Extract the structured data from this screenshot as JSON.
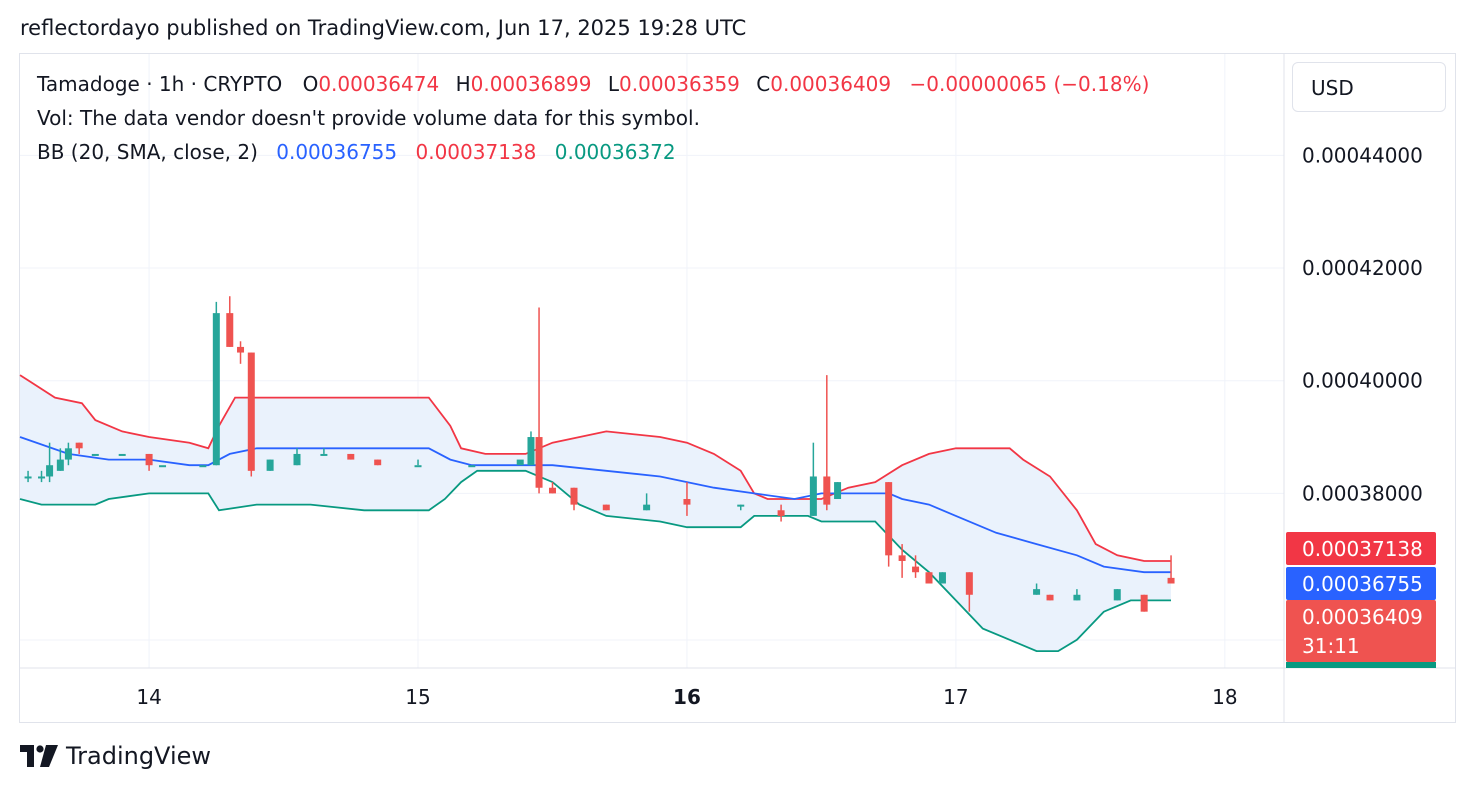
{
  "published": "reflectordayo published on TradingView.com, Jun 17, 2025 19:28 UTC",
  "symbol_line": {
    "symbol": "Tamadoge · 1h · CRYPTO",
    "o_label": "O",
    "o_value": "0.00036474",
    "h_label": "H",
    "h_value": "0.00036899",
    "l_label": "L",
    "l_value": "0.00036359",
    "c_label": "C",
    "c_value": "0.00036409",
    "change": "−0.00000065 (−0.18%)"
  },
  "volume_note": "Vol: The data vendor doesn't provide volume data for this symbol.",
  "bb_line": {
    "label": "BB (20, SMA, close, 2)",
    "basis": "0.00036755",
    "upper": "0.00037138",
    "lower": "0.00036372"
  },
  "currency": "USD",
  "footer_brand": "TradingView",
  "colors": {
    "up": "#26a69a",
    "down": "#ef5350",
    "basis": "#2962ff",
    "upper": "#f23645",
    "lower": "#089981",
    "band_fill": "#eaf2fc",
    "grid": "#f0f3fa"
  },
  "chart_data": {
    "type": "candlestick",
    "interval": "1h",
    "ylim": [
      0.000349,
      0.000458
    ],
    "xlim": [
      13.52,
      18.22
    ],
    "y_ticks": [
      "0.00044000",
      "0.00042000",
      "0.00040000",
      "0.00038000"
    ],
    "y_tick_values": [
      0.00044,
      0.00042,
      0.0004,
      0.00038
    ],
    "x_ticks": [
      "14",
      "15",
      "16",
      "17",
      "18"
    ],
    "x_tick_values": [
      14,
      15,
      16,
      17,
      18
    ],
    "x_tick_bold": [
      false,
      false,
      true,
      false,
      false
    ],
    "price_labels": [
      {
        "text": "0.00037138",
        "value": 0.00037138,
        "color": "#f23645"
      },
      {
        "text": "0.00036755",
        "value": 0.00036755,
        "color": "#2962ff"
      },
      {
        "text": "0.00036409",
        "sub": "31:11",
        "value": 0.00036409,
        "color": "#ef5350"
      }
    ],
    "series": [
      {
        "name": "BB Upper",
        "color": "#f23645",
        "points": [
          [
            13.52,
            0.000401
          ],
          [
            13.65,
            0.000397
          ],
          [
            13.75,
            0.000396
          ],
          [
            13.8,
            0.000393
          ],
          [
            13.9,
            0.000391
          ],
          [
            14.0,
            0.00039
          ],
          [
            14.15,
            0.000389
          ],
          [
            14.22,
            0.000388
          ],
          [
            14.26,
            0.000392
          ],
          [
            14.32,
            0.000397
          ],
          [
            14.5,
            0.000397
          ],
          [
            14.75,
            0.000397
          ],
          [
            15.04,
            0.000397
          ],
          [
            15.12,
            0.000392
          ],
          [
            15.16,
            0.000388
          ],
          [
            15.25,
            0.000387
          ],
          [
            15.4,
            0.000387
          ],
          [
            15.5,
            0.000389
          ],
          [
            15.7,
            0.000391
          ],
          [
            15.9,
            0.00039
          ],
          [
            16.0,
            0.000389
          ],
          [
            16.1,
            0.000387
          ],
          [
            16.2,
            0.000384
          ],
          [
            16.25,
            0.00038
          ],
          [
            16.3,
            0.000379
          ],
          [
            16.42,
            0.000379
          ],
          [
            16.5,
            0.000379
          ],
          [
            16.6,
            0.000381
          ],
          [
            16.7,
            0.000382
          ],
          [
            16.8,
            0.000385
          ],
          [
            16.9,
            0.000387
          ],
          [
            17.0,
            0.000388
          ],
          [
            17.1,
            0.000388
          ],
          [
            17.2,
            0.000388
          ],
          [
            17.25,
            0.000386
          ],
          [
            17.35,
            0.000383
          ],
          [
            17.45,
            0.000377
          ],
          [
            17.52,
            0.000371
          ],
          [
            17.6,
            0.000369
          ],
          [
            17.7,
            0.000368
          ],
          [
            17.8,
            0.000368
          ]
        ]
      },
      {
        "name": "BB Basis",
        "color": "#2962ff",
        "points": [
          [
            13.52,
            0.00039
          ],
          [
            13.7,
            0.000387
          ],
          [
            13.85,
            0.000386
          ],
          [
            14.0,
            0.000386
          ],
          [
            14.15,
            0.000385
          ],
          [
            14.22,
            0.000385
          ],
          [
            14.3,
            0.000387
          ],
          [
            14.4,
            0.000388
          ],
          [
            14.6,
            0.000388
          ],
          [
            14.8,
            0.000388
          ],
          [
            15.04,
            0.000388
          ],
          [
            15.12,
            0.000386
          ],
          [
            15.2,
            0.000385
          ],
          [
            15.4,
            0.000385
          ],
          [
            15.5,
            0.000385
          ],
          [
            15.7,
            0.000384
          ],
          [
            15.9,
            0.000383
          ],
          [
            16.1,
            0.000381
          ],
          [
            16.25,
            0.00038
          ],
          [
            16.4,
            0.000379
          ],
          [
            16.5,
            0.00038
          ],
          [
            16.6,
            0.00038
          ],
          [
            16.75,
            0.00038
          ],
          [
            16.8,
            0.000379
          ],
          [
            16.9,
            0.000378
          ],
          [
            17.0,
            0.000376
          ],
          [
            17.15,
            0.000373
          ],
          [
            17.3,
            0.000371
          ],
          [
            17.45,
            0.000369
          ],
          [
            17.55,
            0.000367
          ],
          [
            17.7,
            0.000366
          ],
          [
            17.8,
            0.000366
          ]
        ]
      },
      {
        "name": "BB Lower",
        "color": "#089981",
        "points": [
          [
            13.52,
            0.000379
          ],
          [
            13.6,
            0.000378
          ],
          [
            13.8,
            0.000378
          ],
          [
            13.85,
            0.000379
          ],
          [
            14.0,
            0.00038
          ],
          [
            14.22,
            0.00038
          ],
          [
            14.26,
            0.000377
          ],
          [
            14.4,
            0.000378
          ],
          [
            14.6,
            0.000378
          ],
          [
            14.8,
            0.000377
          ],
          [
            15.04,
            0.000377
          ],
          [
            15.1,
            0.000379
          ],
          [
            15.16,
            0.000382
          ],
          [
            15.22,
            0.000384
          ],
          [
            15.4,
            0.000384
          ],
          [
            15.5,
            0.000382
          ],
          [
            15.6,
            0.000378
          ],
          [
            15.7,
            0.000376
          ],
          [
            15.9,
            0.000375
          ],
          [
            16.0,
            0.000374
          ],
          [
            16.1,
            0.000374
          ],
          [
            16.2,
            0.000374
          ],
          [
            16.25,
            0.000376
          ],
          [
            16.45,
            0.000376
          ],
          [
            16.5,
            0.000375
          ],
          [
            16.7,
            0.000375
          ],
          [
            16.8,
            0.00037
          ],
          [
            16.9,
            0.000366
          ],
          [
            17.0,
            0.000361
          ],
          [
            17.1,
            0.000356
          ],
          [
            17.2,
            0.000354
          ],
          [
            17.3,
            0.000352
          ],
          [
            17.38,
            0.000352
          ],
          [
            17.45,
            0.000354
          ],
          [
            17.55,
            0.000359
          ],
          [
            17.65,
            0.000361
          ],
          [
            17.75,
            0.000361
          ],
          [
            17.8,
            0.000361
          ]
        ]
      }
    ],
    "candles": [
      {
        "x": 13.55,
        "o": 0.000383,
        "h": 0.000384,
        "l": 0.000382,
        "c": 0.000383
      },
      {
        "x": 13.6,
        "o": 0.000383,
        "h": 0.000384,
        "l": 0.000382,
        "c": 0.000383
      },
      {
        "x": 13.63,
        "o": 0.000383,
        "h": 0.000389,
        "l": 0.000382,
        "c": 0.000385
      },
      {
        "x": 13.67,
        "o": 0.000384,
        "h": 0.000388,
        "l": 0.000384,
        "c": 0.000386
      },
      {
        "x": 13.7,
        "o": 0.000386,
        "h": 0.000389,
        "l": 0.000385,
        "c": 0.000388
      },
      {
        "x": 13.74,
        "o": 0.000389,
        "h": 0.000389,
        "l": 0.000387,
        "c": 0.000388
      },
      {
        "x": 13.8,
        "o": 0.000387,
        "h": 0.000387,
        "l": 0.000387,
        "c": 0.000387
      },
      {
        "x": 13.9,
        "o": 0.000387,
        "h": 0.000387,
        "l": 0.000387,
        "c": 0.000387
      },
      {
        "x": 14.0,
        "o": 0.000387,
        "h": 0.000387,
        "l": 0.000384,
        "c": 0.000385
      },
      {
        "x": 14.05,
        "o": 0.000385,
        "h": 0.000385,
        "l": 0.000385,
        "c": 0.000385
      },
      {
        "x": 14.2,
        "o": 0.000385,
        "h": 0.000385,
        "l": 0.000385,
        "c": 0.000385
      },
      {
        "x": 14.25,
        "o": 0.000385,
        "h": 0.000414,
        "l": 0.000385,
        "c": 0.000412
      },
      {
        "x": 14.3,
        "o": 0.000412,
        "h": 0.000415,
        "l": 0.000406,
        "c": 0.000406
      },
      {
        "x": 14.34,
        "o": 0.000406,
        "h": 0.000407,
        "l": 0.000403,
        "c": 0.000405
      },
      {
        "x": 14.38,
        "o": 0.000405,
        "h": 0.000405,
        "l": 0.000383,
        "c": 0.000384
      },
      {
        "x": 14.45,
        "o": 0.000384,
        "h": 0.000386,
        "l": 0.000384,
        "c": 0.000386
      },
      {
        "x": 14.55,
        "o": 0.000385,
        "h": 0.000388,
        "l": 0.000385,
        "c": 0.000387
      },
      {
        "x": 14.65,
        "o": 0.000387,
        "h": 0.000388,
        "l": 0.000387,
        "c": 0.000387
      },
      {
        "x": 14.75,
        "o": 0.000387,
        "h": 0.000387,
        "l": 0.000386,
        "c": 0.000386
      },
      {
        "x": 14.85,
        "o": 0.000386,
        "h": 0.000386,
        "l": 0.000385,
        "c": 0.000385
      },
      {
        "x": 15.0,
        "o": 0.000385,
        "h": 0.000386,
        "l": 0.000385,
        "c": 0.000385
      },
      {
        "x": 15.2,
        "o": 0.000385,
        "h": 0.000385,
        "l": 0.000385,
        "c": 0.000385
      },
      {
        "x": 15.38,
        "o": 0.000385,
        "h": 0.000385,
        "l": 0.000385,
        "c": 0.000386
      },
      {
        "x": 15.42,
        "o": 0.000385,
        "h": 0.000391,
        "l": 0.000385,
        "c": 0.00039
      },
      {
        "x": 15.45,
        "o": 0.00039,
        "h": 0.000413,
        "l": 0.00038,
        "c": 0.000381
      },
      {
        "x": 15.5,
        "o": 0.000381,
        "h": 0.000382,
        "l": 0.00038,
        "c": 0.00038
      },
      {
        "x": 15.58,
        "o": 0.000381,
        "h": 0.000381,
        "l": 0.000377,
        "c": 0.000378
      },
      {
        "x": 15.7,
        "o": 0.000378,
        "h": 0.000378,
        "l": 0.000377,
        "c": 0.000377
      },
      {
        "x": 15.85,
        "o": 0.000377,
        "h": 0.00038,
        "l": 0.000377,
        "c": 0.000378
      },
      {
        "x": 16.0,
        "o": 0.000379,
        "h": 0.000382,
        "l": 0.000376,
        "c": 0.000378
      },
      {
        "x": 16.2,
        "o": 0.000378,
        "h": 0.000378,
        "l": 0.000377,
        "c": 0.000378
      },
      {
        "x": 16.35,
        "o": 0.000377,
        "h": 0.000378,
        "l": 0.000375,
        "c": 0.000376
      },
      {
        "x": 16.47,
        "o": 0.000376,
        "h": 0.000389,
        "l": 0.000376,
        "c": 0.000383
      },
      {
        "x": 16.52,
        "o": 0.000383,
        "h": 0.000401,
        "l": 0.000377,
        "c": 0.000378
      },
      {
        "x": 16.56,
        "o": 0.000379,
        "h": 0.000382,
        "l": 0.000379,
        "c": 0.000382
      },
      {
        "x": 16.75,
        "o": 0.000382,
        "h": 0.000382,
        "l": 0.000367,
        "c": 0.000369
      },
      {
        "x": 16.8,
        "o": 0.000369,
        "h": 0.000371,
        "l": 0.000365,
        "c": 0.000368
      },
      {
        "x": 16.85,
        "o": 0.000367,
        "h": 0.000369,
        "l": 0.000365,
        "c": 0.000366
      },
      {
        "x": 16.9,
        "o": 0.000366,
        "h": 0.000366,
        "l": 0.000364,
        "c": 0.000364
      },
      {
        "x": 16.95,
        "o": 0.000364,
        "h": 0.000366,
        "l": 0.000364,
        "c": 0.000366
      },
      {
        "x": 17.05,
        "o": 0.000366,
        "h": 0.000366,
        "l": 0.000359,
        "c": 0.000362
      },
      {
        "x": 17.3,
        "o": 0.000362,
        "h": 0.000364,
        "l": 0.000362,
        "c": 0.000363
      },
      {
        "x": 17.35,
        "o": 0.000362,
        "h": 0.000362,
        "l": 0.000361,
        "c": 0.000361
      },
      {
        "x": 17.45,
        "o": 0.000361,
        "h": 0.000363,
        "l": 0.000361,
        "c": 0.000362
      },
      {
        "x": 17.6,
        "o": 0.000361,
        "h": 0.000363,
        "l": 0.000361,
        "c": 0.000363
      },
      {
        "x": 17.7,
        "o": 0.000362,
        "h": 0.000362,
        "l": 0.000359,
        "c": 0.000359
      },
      {
        "x": 17.8,
        "o": 0.000365,
        "h": 0.000369,
        "l": 0.000364,
        "c": 0.000364
      }
    ]
  }
}
